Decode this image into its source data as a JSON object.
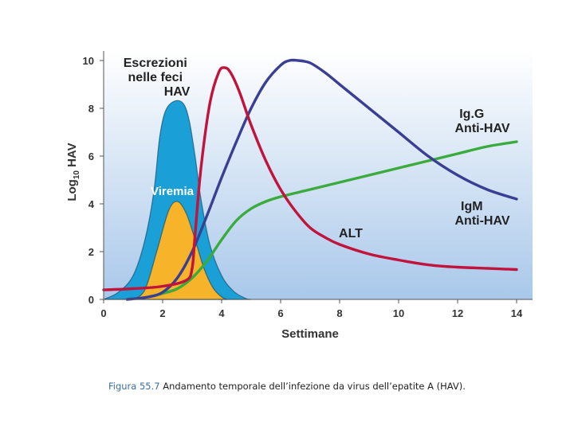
{
  "chart_data": {
    "type": "area",
    "ylabel": "Log",
    "ylabel_sub": "10",
    "ylabel_suffix": "HAV",
    "xlabel": "Settimane",
    "xlim": [
      0,
      14
    ],
    "ylim": [
      0,
      10
    ],
    "x_ticks": [
      "0",
      "2",
      "4",
      "6",
      "8",
      "10",
      "12",
      "14"
    ],
    "y_ticks": [
      "0",
      "2",
      "4",
      "6",
      "8",
      "10"
    ],
    "grid": false,
    "colors": {
      "background_top": "#ffffff",
      "background_bottom": "#a9c8ea",
      "escrezioni": "#1a9fd6",
      "viremia": "#f7b32a",
      "igg": "#3a3f94",
      "igm": "#3aab3c",
      "alt": "#c0143c"
    },
    "annotations": {
      "escrezioni": [
        "Escrezioni",
        "nelle feci",
        "HAV"
      ],
      "viremia": "Viremia",
      "igg": [
        "Ig.G",
        "Anti-HAV"
      ],
      "igm": [
        "IgM",
        "Anti-HAV"
      ],
      "alt": "ALT"
    },
    "series": [
      {
        "key": "escrezioni",
        "kind": "area",
        "x": [
          0,
          0.5,
          1,
          1.4,
          1.7,
          1.9,
          2.1,
          2.4,
          2.7,
          2.9,
          3.1,
          3.3,
          3.6,
          4,
          4.4,
          4.8,
          5
        ],
        "y": [
          0,
          0.3,
          1,
          2.5,
          4.5,
          6.8,
          7.9,
          8.3,
          8.2,
          7.5,
          6,
          4.2,
          2.3,
          1,
          0.35,
          0.05,
          0
        ]
      },
      {
        "key": "viremia",
        "kind": "area",
        "x": [
          1,
          1.4,
          1.8,
          2.2,
          2.5,
          2.8,
          3.1,
          3.4,
          3.7,
          4,
          4.2
        ],
        "y": [
          0,
          0.4,
          2,
          3.7,
          4.1,
          3.6,
          2.5,
          1.3,
          0.5,
          0.1,
          0
        ]
      },
      {
        "key": "igg",
        "kind": "line",
        "x": [
          0.8,
          1.5,
          2,
          2.5,
          3,
          3.5,
          4,
          4.5,
          5,
          5.5,
          6,
          6.3,
          6.6,
          7,
          7.5,
          8,
          9,
          10,
          11,
          12,
          13,
          14
        ],
        "y": [
          0,
          0.1,
          0.3,
          0.9,
          2,
          3.5,
          5.1,
          6.6,
          8,
          9.1,
          9.8,
          10,
          10,
          9.9,
          9.5,
          9,
          8,
          7,
          6,
          5.2,
          4.6,
          4.2
        ]
      },
      {
        "key": "igm",
        "kind": "line",
        "x": [
          1.5,
          2,
          2.5,
          3,
          3.5,
          4,
          4.5,
          5,
          5.5,
          6,
          7,
          8,
          9,
          10,
          11,
          12,
          13,
          14
        ],
        "y": [
          0.1,
          0.25,
          0.45,
          0.9,
          1.6,
          2.5,
          3.3,
          3.8,
          4.1,
          4.3,
          4.6,
          4.9,
          5.2,
          5.5,
          5.8,
          6.1,
          6.4,
          6.6
        ]
      },
      {
        "key": "alt",
        "kind": "line",
        "x": [
          0,
          1,
          2,
          2.8,
          3,
          3.1,
          3.3,
          3.6,
          3.9,
          4.1,
          4.3,
          4.6,
          5,
          5.5,
          6,
          6.5,
          7,
          7.5,
          8,
          9,
          10,
          11,
          12,
          13,
          14
        ],
        "y": [
          0.4,
          0.45,
          0.55,
          0.8,
          1.3,
          2.7,
          5.5,
          8.2,
          9.5,
          9.7,
          9.5,
          8.7,
          7.3,
          5.8,
          4.6,
          3.7,
          3,
          2.6,
          2.3,
          1.9,
          1.65,
          1.45,
          1.35,
          1.3,
          1.25
        ]
      }
    ]
  },
  "caption": {
    "figure_ref": "Figura 55.7",
    "text": " Andamento temporale dell’infezione da virus dell’epatite A (HAV)."
  }
}
